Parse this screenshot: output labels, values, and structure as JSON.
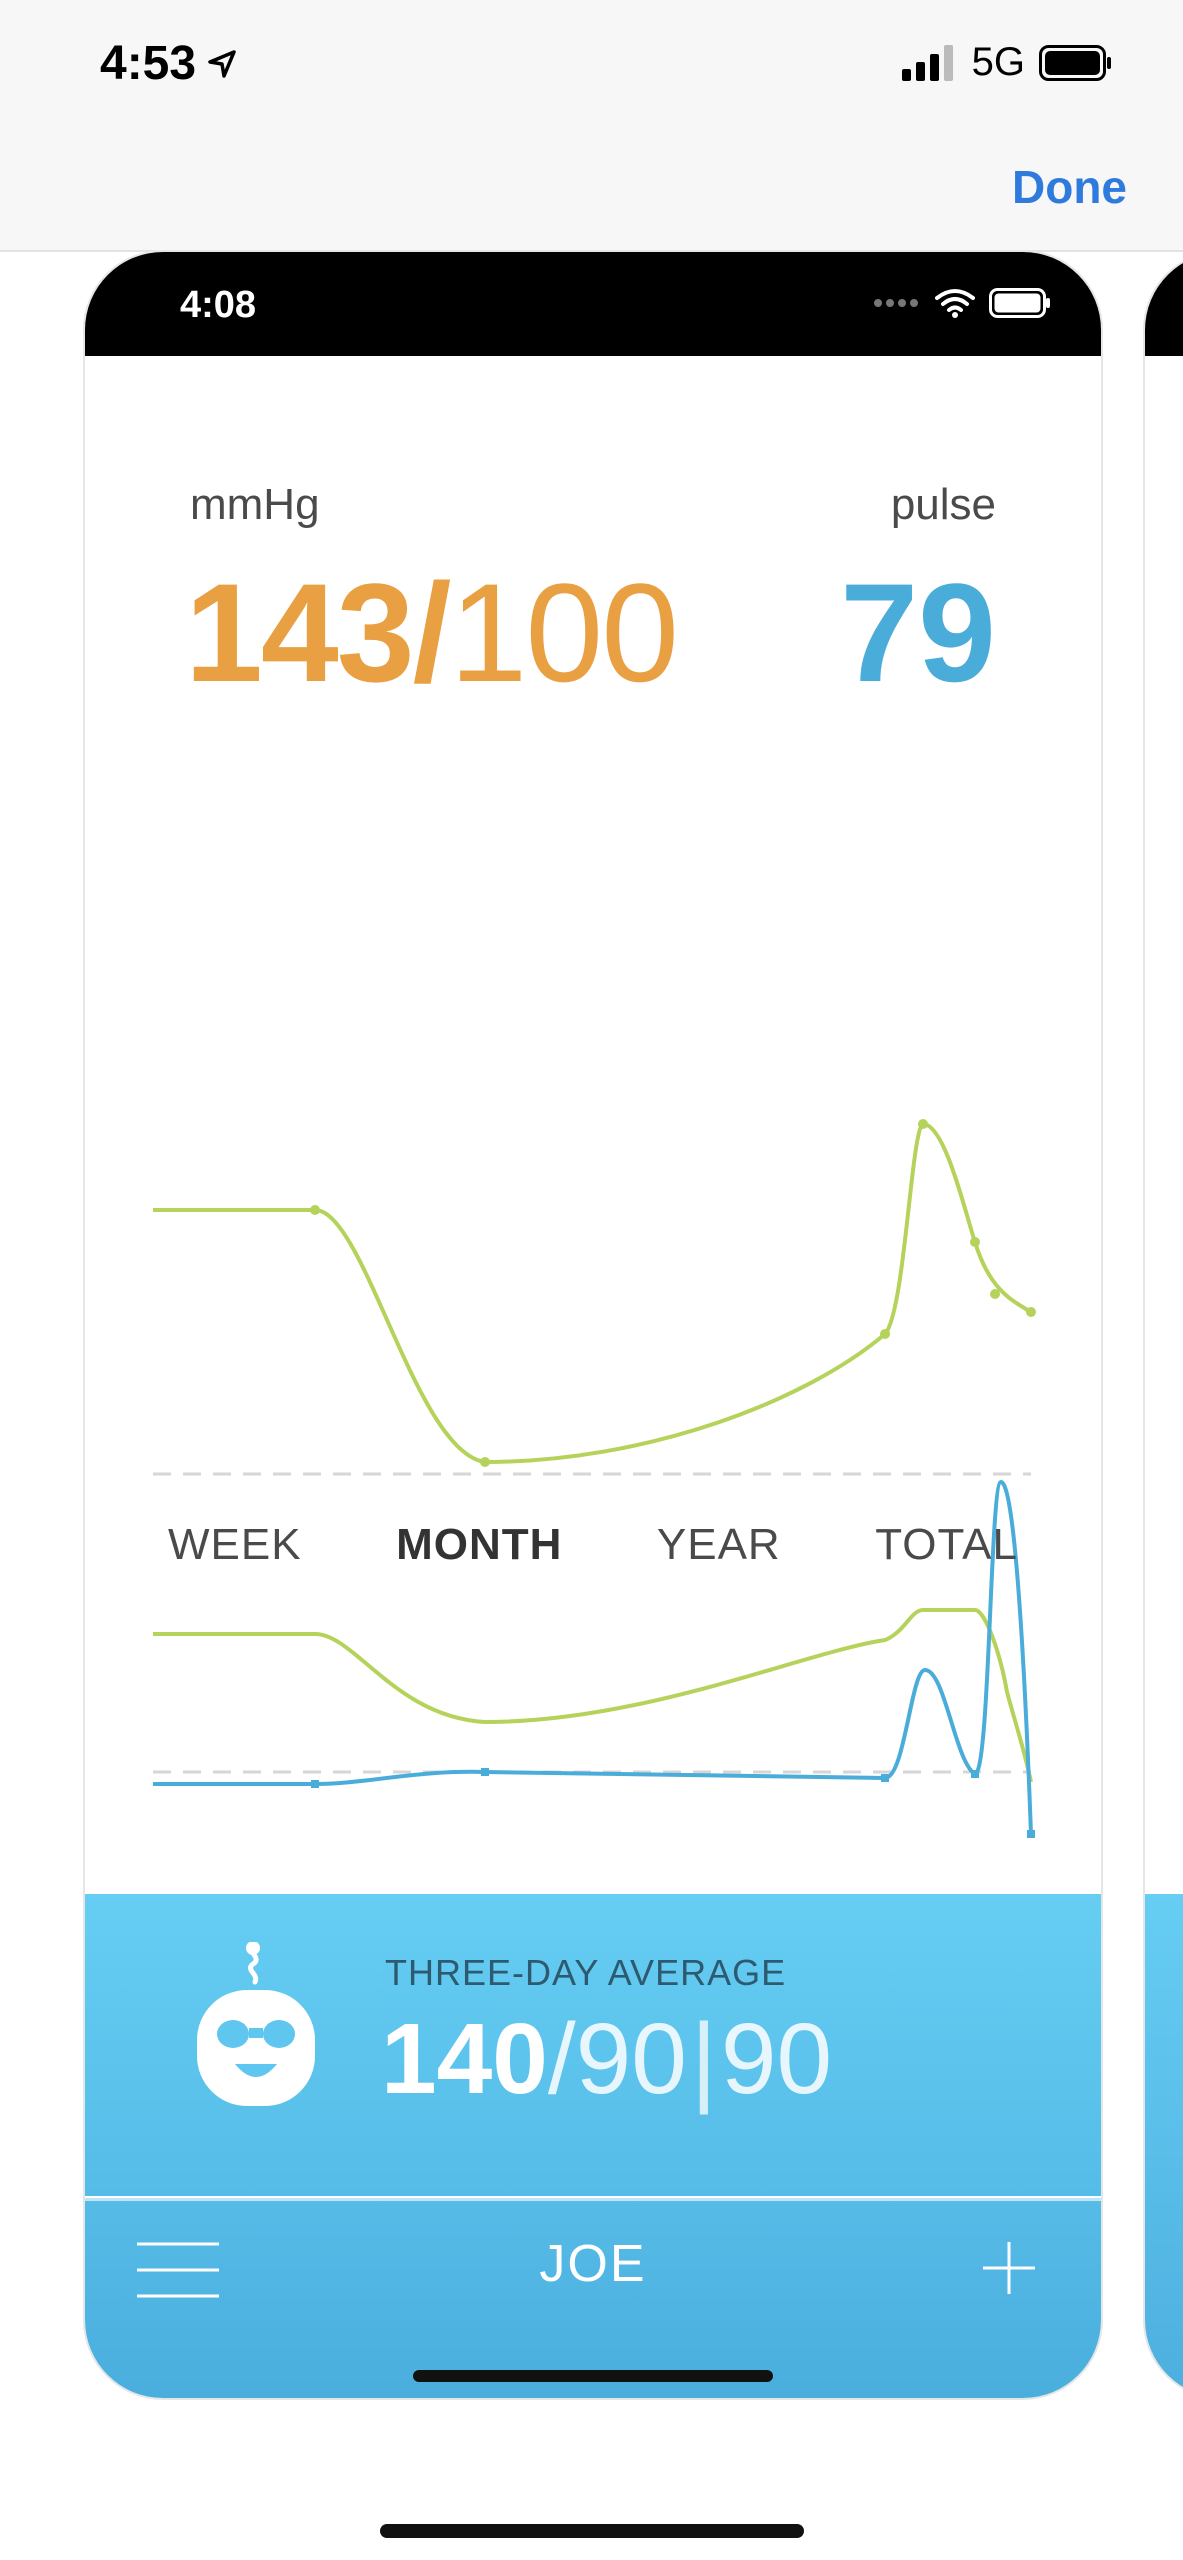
{
  "outer": {
    "time": "4:53",
    "network": "5G",
    "done_label": "Done"
  },
  "inner": {
    "time": "4:08"
  },
  "reading": {
    "unit": "mmHg",
    "systolic": "143",
    "separator": "/",
    "diastolic": "100",
    "pulse_label": "pulse",
    "pulse": "79"
  },
  "tabs": [
    {
      "label": "WEEK"
    },
    {
      "label": "MONTH"
    },
    {
      "label": "YEAR"
    },
    {
      "label": "TOTAL"
    }
  ],
  "average": {
    "title": "THREE-DAY AVERAGE",
    "systolic": "140",
    "slash": "/",
    "diastolic": "90",
    "bar": "|",
    "pulse": "90"
  },
  "footer": {
    "user": "JOE"
  },
  "colors": {
    "orange": "#e8a043",
    "blue": "#4aacd9",
    "green": "#b5d25a",
    "link": "#2f7bdd"
  }
}
